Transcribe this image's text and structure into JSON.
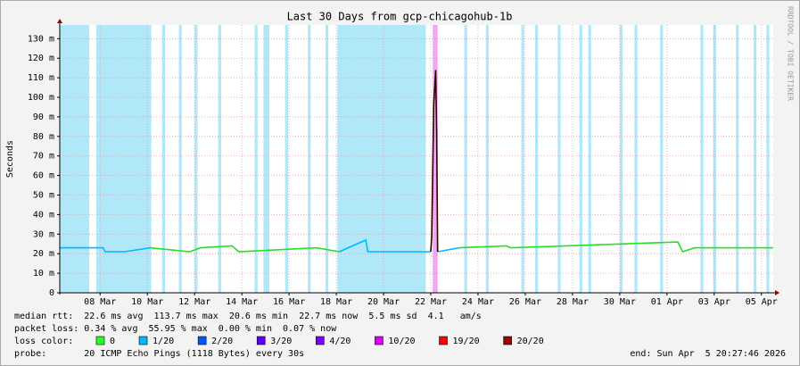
{
  "chart_data": {
    "type": "line",
    "title": "Last 30 Days from gcp-chicagohub-1b",
    "y_label": "Seconds",
    "side_label": "RRDTOOL / TOBI OETIKER",
    "ylim": [
      0,
      137
    ],
    "yticks": [
      0,
      {
        "value": 10,
        "label": "10 m"
      },
      {
        "value": 20,
        "label": "20 m"
      },
      {
        "value": 30,
        "label": "30 m"
      },
      {
        "value": 40,
        "label": "40 m"
      },
      {
        "value": 50,
        "label": "50 m"
      },
      {
        "value": 60,
        "label": "60 m"
      },
      {
        "value": 70,
        "label": "70 m"
      },
      {
        "value": 80,
        "label": "80 m"
      },
      {
        "value": 90,
        "label": "90 m"
      },
      {
        "value": 100,
        "label": "100 m"
      },
      {
        "value": 110,
        "label": "110 m"
      },
      {
        "value": 120,
        "label": "120 m"
      },
      {
        "value": 130,
        "label": "130 m"
      }
    ],
    "xlim": [
      "2026-03-06T07:00",
      "2026-04-05T12:00"
    ],
    "xticks": [
      {
        "value": "2026-03-08T00:00",
        "label": "08 Mar"
      },
      {
        "value": "2026-03-10T00:00",
        "label": "10 Mar"
      },
      {
        "value": "2026-03-12T00:00",
        "label": "12 Mar"
      },
      {
        "value": "2026-03-14T00:00",
        "label": "14 Mar"
      },
      {
        "value": "2026-03-16T00:00",
        "label": "16 Mar"
      },
      {
        "value": "2026-03-18T00:00",
        "label": "18 Mar"
      },
      {
        "value": "2026-03-20T00:00",
        "label": "20 Mar"
      },
      {
        "value": "2026-03-22T00:00",
        "label": "22 Mar"
      },
      {
        "value": "2026-03-24T00:00",
        "label": "24 Mar"
      },
      {
        "value": "2026-03-26T00:00",
        "label": "26 Mar"
      },
      {
        "value": "2026-03-28T00:00",
        "label": "28 Mar"
      },
      {
        "value": "2026-03-30T00:00",
        "label": "30 Mar"
      },
      {
        "value": "2026-04-01T00:00",
        "label": "01 Apr"
      },
      {
        "value": "2026-04-03T00:00",
        "label": "03 Apr"
      },
      {
        "value": "2026-04-05T00:00",
        "label": "05 Apr"
      }
    ],
    "grid": true,
    "x": [
      "2026-03-06T07:00",
      "2026-03-08T03:00",
      "2026-03-08T05:00",
      "2026-03-09T01:00",
      "2026-03-10T03:00",
      "2026-03-11T19:00",
      "2026-03-12T06:00",
      "2026-03-13T14:00",
      "2026-03-13T21:00",
      "2026-03-17T04:00",
      "2026-03-18T03:00",
      "2026-03-18T12:00",
      "2026-03-19T06:00",
      "2026-03-19T08:00",
      "2026-03-22T00:00",
      "2026-03-22T01:00",
      "2026-03-22T03:00",
      "2026-03-22T05:00",
      "2026-03-22T06:00",
      "2026-03-22T07:00",
      "2026-03-23T05:00",
      "2026-03-25T05:00",
      "2026-03-25T09:00",
      "2026-04-01T11:00",
      "2026-04-01T16:00",
      "2026-04-02T04:00",
      "2026-04-05T12:00"
    ],
    "series": [
      {
        "color": "#00b8ff",
        "values": [
          23,
          23,
          21,
          21,
          23,
          null,
          null,
          null,
          null,
          null,
          21,
          23,
          27,
          21,
          21,
          null,
          null,
          null,
          null,
          21,
          23,
          null,
          null,
          null,
          null,
          null,
          null
        ]
      },
      {
        "color": "#26e026",
        "values": [
          null,
          null,
          null,
          null,
          23,
          21,
          23,
          24,
          21,
          23,
          21,
          null,
          null,
          null,
          null,
          null,
          null,
          null,
          null,
          null,
          23,
          24,
          23,
          26,
          21,
          23,
          23
        ]
      },
      {
        "color": "#300000",
        "values": [
          null,
          null,
          null,
          null,
          null,
          null,
          null,
          null,
          null,
          null,
          null,
          null,
          null,
          null,
          21,
          29,
          96,
          114,
          82,
          21,
          null,
          null,
          null,
          null,
          null,
          null,
          null
        ]
      }
    ],
    "bands": [
      {
        "start": "2026-03-06T07:00",
        "end": "2026-03-07T13:00",
        "color": "#b0e8fa"
      },
      {
        "start": "2026-03-07T20:00",
        "end": "2026-03-10T04:00",
        "color": "#b0e8fa"
      },
      {
        "start": "2026-03-10T15:00",
        "end": "2026-03-10T18:00",
        "color": "#b0e8fa"
      },
      {
        "start": "2026-03-11T08:00",
        "end": "2026-03-11T11:00",
        "color": "#b0e8fa"
      },
      {
        "start": "2026-03-12T00:00",
        "end": "2026-03-12T03:00",
        "color": "#b0e8fa"
      },
      {
        "start": "2026-03-13T00:00",
        "end": "2026-03-13T03:00",
        "color": "#b0e8fa"
      },
      {
        "start": "2026-03-14T13:00",
        "end": "2026-03-14T16:00",
        "color": "#b0e8fa"
      },
      {
        "start": "2026-03-14T22:00",
        "end": "2026-03-15T04:00",
        "color": "#b0e8fa"
      },
      {
        "start": "2026-03-15T20:00",
        "end": "2026-03-15T23:00",
        "color": "#b0e8fa"
      },
      {
        "start": "2026-03-16T19:00",
        "end": "2026-03-16T22:00",
        "color": "#b0e8fa"
      },
      {
        "start": "2026-03-17T13:00",
        "end": "2026-03-17T16:00",
        "color": "#b0e8fa"
      },
      {
        "start": "2026-03-18T01:00",
        "end": "2026-03-21T19:00",
        "color": "#b0e8fa"
      },
      {
        "start": "2026-03-22T02:00",
        "end": "2026-03-22T07:00",
        "color": "#f0a8f0"
      },
      {
        "start": "2026-03-23T10:00",
        "end": "2026-03-23T13:00",
        "color": "#b0e8fa"
      },
      {
        "start": "2026-03-24T08:00",
        "end": "2026-03-24T11:00",
        "color": "#b0e8fa"
      },
      {
        "start": "2026-03-25T20:00",
        "end": "2026-03-25T23:00",
        "color": "#b0e8fa"
      },
      {
        "start": "2026-03-26T10:00",
        "end": "2026-03-26T13:00",
        "color": "#b0e8fa"
      },
      {
        "start": "2026-03-27T09:00",
        "end": "2026-03-27T12:00",
        "color": "#b0e8fa"
      },
      {
        "start": "2026-03-28T07:00",
        "end": "2026-03-28T10:00",
        "color": "#b0e8fa"
      },
      {
        "start": "2026-03-28T16:00",
        "end": "2026-03-28T19:00",
        "color": "#b0e8fa"
      },
      {
        "start": "2026-03-30T00:00",
        "end": "2026-03-30T03:00",
        "color": "#b0e8fa"
      },
      {
        "start": "2026-03-30T15:00",
        "end": "2026-03-30T18:00",
        "color": "#b0e8fa"
      },
      {
        "start": "2026-03-31T17:00",
        "end": "2026-03-31T20:00",
        "color": "#b0e8fa"
      },
      {
        "start": "2026-04-02T10:00",
        "end": "2026-04-02T13:00",
        "color": "#b0e8fa"
      },
      {
        "start": "2026-04-02T23:00",
        "end": "2026-04-03T02:00",
        "color": "#b0e8fa"
      },
      {
        "start": "2026-04-03T22:00",
        "end": "2026-04-04T01:00",
        "color": "#b0e8fa"
      },
      {
        "start": "2026-04-04T16:00",
        "end": "2026-04-04T19:00",
        "color": "#b0e8fa"
      },
      {
        "start": "2026-04-05T05:00",
        "end": "2026-04-05T08:00",
        "color": "#b0e8fa"
      }
    ],
    "stats": [
      "median rtt:  22.6 ms avg  113.7 ms max  20.6 ms min  22.7 ms now  5.5 ms sd  4.1   am/s",
      "packet loss: 0.34 % avg  55.95 % max  0.00 % min  0.07 % now"
    ],
    "loss_legend": {
      "label": "loss color:",
      "items": [
        {
          "label": "0",
          "color": "#26ff26"
        },
        {
          "label": "1/20",
          "color": "#00b8ff"
        },
        {
          "label": "2/20",
          "color": "#0059ff"
        },
        {
          "label": "3/20",
          "color": "#5e00ff"
        },
        {
          "label": "4/20",
          "color": "#7e00ff"
        },
        {
          "label": "10/20",
          "color": "#dd00ff"
        },
        {
          "label": "19/20",
          "color": "#ff0000"
        },
        {
          "label": "20/20",
          "color": "#a00000"
        }
      ]
    },
    "probe": "probe:       20 ICMP Echo Pings (1118 Bytes) every 30s",
    "end": "end: Sun Apr  5 20:27:46 2026"
  }
}
